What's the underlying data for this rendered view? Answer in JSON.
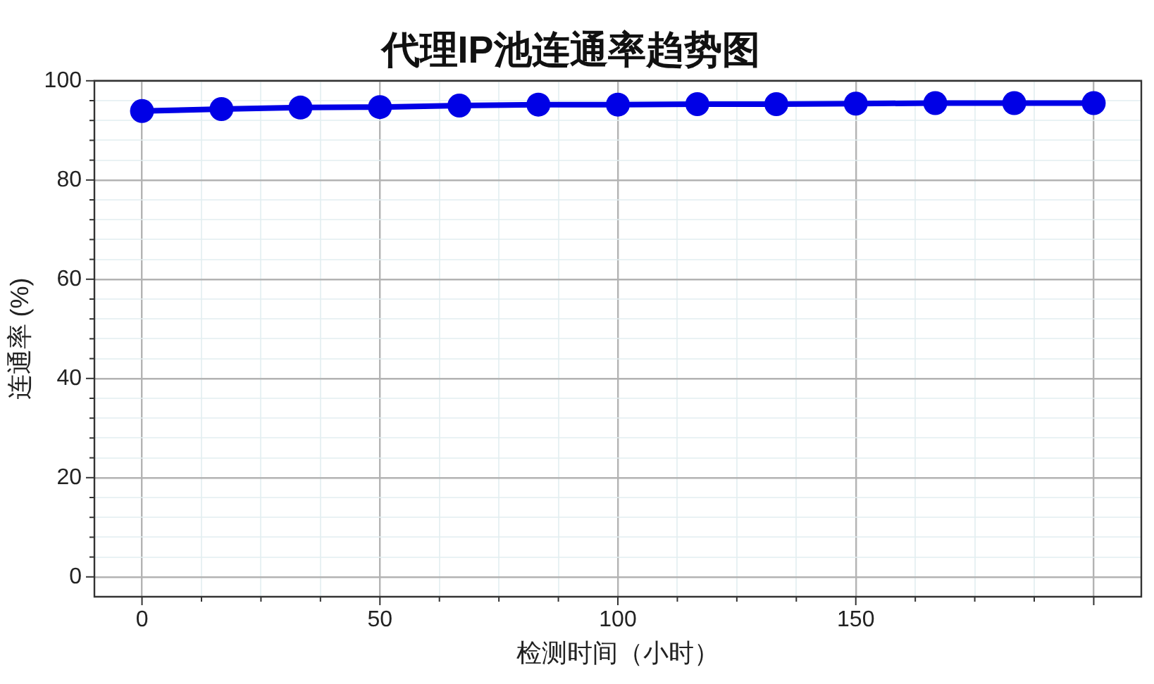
{
  "chart_data": {
    "type": "line",
    "title": "代理IP池连通率趋势图",
    "xlabel": "检测时间（小时）",
    "ylabel": "连通率 (%)",
    "x": [
      0,
      16.7,
      33.3,
      50,
      66.7,
      83.3,
      100,
      116.7,
      133.3,
      150,
      166.7,
      183.3,
      200
    ],
    "values": [
      93.9,
      94.3,
      94.6,
      94.7,
      95.0,
      95.2,
      95.2,
      95.3,
      95.3,
      95.4,
      95.5,
      95.5,
      95.5
    ],
    "color": "#0000e6",
    "marker": "circle",
    "line_style": "solid",
    "xlim": [
      -10,
      210
    ],
    "xticks": [
      0,
      {
        "value": 12.5,
        "label": null
      },
      {
        "value": 25,
        "label": null
      },
      {
        "value": 37.5,
        "label": null
      },
      50,
      {
        "value": 62.5,
        "label": null
      },
      {
        "value": 75,
        "label": null
      },
      {
        "value": 87.5,
        "label": null
      },
      100,
      {
        "value": 112.5,
        "label": null
      },
      {
        "value": 125,
        "label": null
      },
      {
        "value": 137.5,
        "label": null
      },
      150,
      {
        "value": 162.5,
        "label": null
      },
      {
        "value": 175,
        "label": null
      },
      {
        "value": 187.5,
        "label": null
      },
      {
        "value": 200,
        "label": null
      }
    ],
    "ylim": [
      -4,
      100
    ],
    "yticks": [
      0,
      {
        "value": 4,
        "label": null
      },
      {
        "value": 8,
        "label": null
      },
      {
        "value": 12,
        "label": null
      },
      {
        "value": 16,
        "label": null
      },
      20,
      {
        "value": 24,
        "label": null
      },
      {
        "value": 28,
        "label": null
      },
      {
        "value": 32,
        "label": null
      },
      {
        "value": 36,
        "label": null
      },
      40,
      {
        "value": 44,
        "label": null
      },
      {
        "value": 48,
        "label": null
      },
      {
        "value": 52,
        "label": null
      },
      {
        "value": 56,
        "label": null
      },
      60,
      {
        "value": 64,
        "label": null
      },
      {
        "value": 68,
        "label": null
      },
      {
        "value": 72,
        "label": null
      },
      {
        "value": 76,
        "label": null
      },
      80,
      {
        "value": 84,
        "label": null
      },
      {
        "value": 88,
        "label": null
      },
      {
        "value": 92,
        "label": null
      },
      {
        "value": 96,
        "label": null
      },
      100
    ],
    "grid": true
  }
}
